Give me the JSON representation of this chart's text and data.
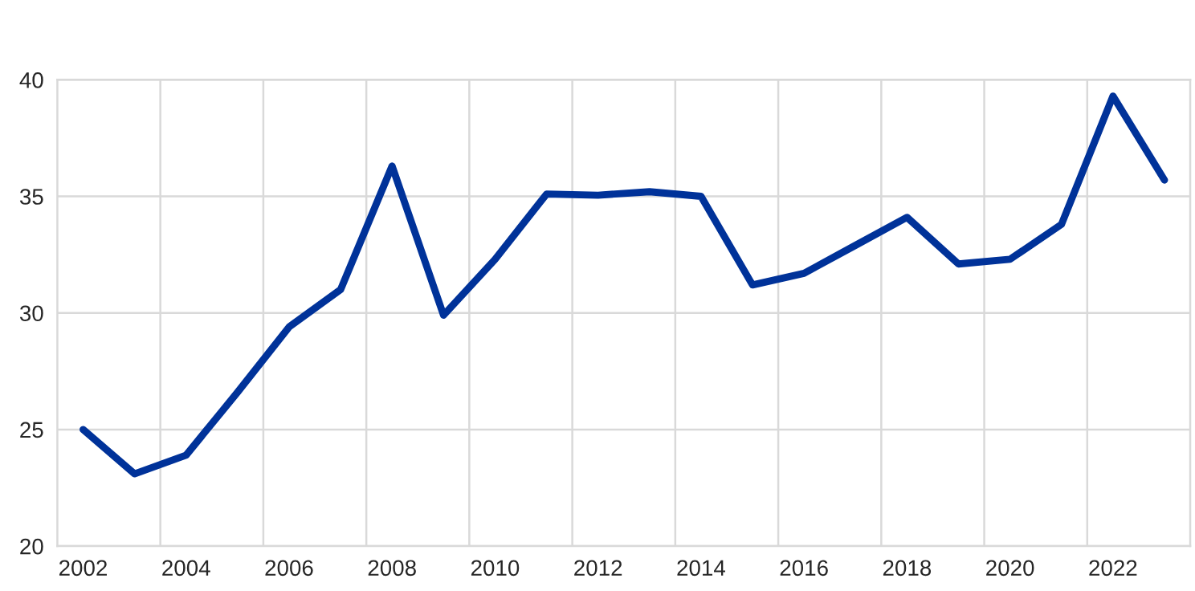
{
  "chart_data": {
    "type": "line",
    "categories": [
      "2002",
      null,
      "2004",
      null,
      "2006",
      null,
      "2008",
      null,
      "2010",
      null,
      "2012",
      null,
      "2014",
      null,
      "2016",
      null,
      "2018",
      null,
      "2020",
      null,
      "2022",
      null
    ],
    "series": [
      {
        "color": "#003299",
        "values": [
          25.0,
          23.1,
          23.9,
          26.6,
          29.4,
          31.0,
          36.3,
          29.9,
          32.3,
          35.1,
          35.05,
          35.2,
          35.0,
          31.2,
          31.7,
          32.9,
          34.1,
          32.1,
          32.3,
          33.8,
          39.3,
          35.7
        ]
      }
    ],
    "ylim": [
      20,
      40
    ],
    "yticks": [
      20,
      25,
      30,
      35,
      40
    ],
    "grid": true,
    "marker": "none",
    "line_style": "solid"
  }
}
